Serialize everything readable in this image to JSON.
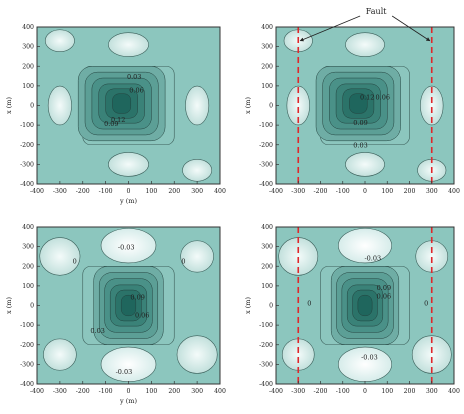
{
  "chart_data": [
    {
      "type": "heatmap",
      "xlabel": "y (m)",
      "ylabel": "x (m)",
      "xlim": [
        -400,
        400
      ],
      "ylim": [
        -400,
        400
      ],
      "xticks": [
        "-400",
        "-300",
        "-200",
        "-100",
        "0",
        "100",
        "200",
        "300",
        "400"
      ],
      "yticks": [
        "400",
        "300",
        "200",
        "100",
        "0",
        "-100",
        "-200",
        "-300",
        "-400"
      ],
      "contour_labels": [
        {
          "text": "0.03",
          "x": 25,
          "y": 135
        },
        {
          "text": "0.06",
          "x": 35,
          "y": 65
        },
        {
          "text": "0.09",
          "x": -75,
          "y": -105
        },
        {
          "text": "0.12",
          "x": -45,
          "y": -85
        }
      ],
      "faults": []
    },
    {
      "type": "heatmap",
      "xlabel": "",
      "ylabel": "x (m)",
      "xlim": [
        -400,
        400
      ],
      "ylim": [
        -400,
        400
      ],
      "xticks": [
        "-400",
        "-300",
        "-200",
        "-100",
        "0",
        "100",
        "200",
        "300",
        "400"
      ],
      "yticks": [
        "400",
        "300",
        "200",
        "100",
        "0",
        "-100",
        "-200",
        "-300",
        "-400"
      ],
      "contour_labels": [
        {
          "text": "0.12",
          "x": 10,
          "y": 30
        },
        {
          "text": "0.06",
          "x": 80,
          "y": 30
        },
        {
          "text": "0.09",
          "x": -20,
          "y": -100
        },
        {
          "text": "0.03",
          "x": -20,
          "y": -215
        }
      ],
      "faults": [
        -300,
        300
      ],
      "annotation": "Fault"
    },
    {
      "type": "heatmap",
      "xlabel": "y (m)",
      "ylabel": "x (m)",
      "xlim": [
        -400,
        400
      ],
      "ylim": [
        -400,
        400
      ],
      "xticks": [
        "-400",
        "-300",
        "-200",
        "-100",
        "0",
        "100",
        "200",
        "300",
        "400"
      ],
      "yticks": [
        "400",
        "300",
        "200",
        "100",
        "0",
        "-100",
        "-200",
        "-300",
        "-400"
      ],
      "contour_labels": [
        {
          "text": "-0.03",
          "x": -10,
          "y": 285
        },
        {
          "text": "0",
          "x": -235,
          "y": 215
        },
        {
          "text": "0",
          "x": 240,
          "y": 215
        },
        {
          "text": "0.09",
          "x": 40,
          "y": 30
        },
        {
          "text": "0.06",
          "x": 60,
          "y": -60
        },
        {
          "text": "0.03",
          "x": -135,
          "y": -140
        },
        {
          "text": "-0.03",
          "x": -20,
          "y": -350
        }
      ],
      "faults": []
    },
    {
      "type": "heatmap",
      "xlabel": "",
      "ylabel": "x (m)",
      "xlim": [
        -400,
        400
      ],
      "ylim": [
        -400,
        400
      ],
      "xticks": [
        "-400",
        "-300",
        "-200",
        "-100",
        "0",
        "100",
        "200",
        "300",
        "400"
      ],
      "yticks": [
        "400",
        "300",
        "200",
        "100",
        "0",
        "-100",
        "-200",
        "-300",
        "-400"
      ],
      "contour_labels": [
        {
          "text": "-0.03",
          "x": 35,
          "y": 230
        },
        {
          "text": "0.09",
          "x": 85,
          "y": 80
        },
        {
          "text": "0.06",
          "x": 85,
          "y": 35
        },
        {
          "text": "0",
          "x": -250,
          "y": 0
        },
        {
          "text": "0",
          "x": 275,
          "y": 0
        },
        {
          "text": "-0.03",
          "x": 20,
          "y": -275
        }
      ],
      "faults": [
        -300,
        300
      ]
    }
  ]
}
